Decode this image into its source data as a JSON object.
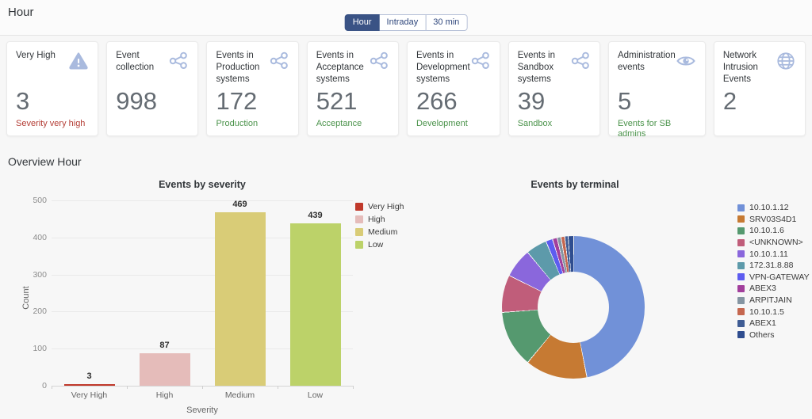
{
  "header": {
    "title": "Hour",
    "timeframe_buttons": [
      {
        "label": "Hour",
        "selected": true
      },
      {
        "label": "Intraday",
        "selected": false
      },
      {
        "label": "30 min",
        "selected": false
      }
    ]
  },
  "tiles": [
    {
      "title": "Very High",
      "icon": "warning-icon",
      "value": "3",
      "subtitle": "Severity very high",
      "subtitle_type": "negative"
    },
    {
      "title": "Event collection",
      "icon": "share-icon",
      "value": "998",
      "subtitle": "",
      "subtitle_type": "none"
    },
    {
      "title": "Events in Production systems",
      "icon": "share-icon",
      "value": "172",
      "subtitle": "Production",
      "subtitle_type": "positive"
    },
    {
      "title": "Events in Acceptance systems",
      "icon": "share-icon",
      "value": "521",
      "subtitle": "Acceptance",
      "subtitle_type": "positive"
    },
    {
      "title": "Events in Development systems",
      "icon": "share-icon",
      "value": "266",
      "subtitle": "Development",
      "subtitle_type": "positive"
    },
    {
      "title": "Events in Sandbox systems",
      "icon": "share-icon",
      "value": "39",
      "subtitle": "Sandbox",
      "subtitle_type": "positive"
    },
    {
      "title": "Administration events",
      "icon": "eye-icon",
      "value": "5",
      "subtitle": "Events for SB admins",
      "subtitle_type": "positive"
    },
    {
      "title": "Network Intrusion Events",
      "icon": "globe-icon",
      "value": "2",
      "subtitle": "",
      "subtitle_type": "none"
    }
  ],
  "overview": {
    "title": "Overview Hour"
  },
  "colors": {
    "icon_blue": "#a9bade",
    "positive_green": "#4b934b",
    "negative_red": "#b43e36",
    "selected_segment": "#3a5385",
    "background": "#f7f7f7"
  },
  "chart_data": [
    {
      "type": "bar",
      "title": "Events by severity",
      "xlabel": "Severity",
      "ylabel": "Count",
      "categories": [
        "Very High",
        "High",
        "Medium",
        "Low"
      ],
      "values": [
        3,
        87,
        469,
        439
      ],
      "colors": [
        "#c0392b",
        "#e5bcba",
        "#d9cc77",
        "#bcd269"
      ],
      "ylim": [
        0,
        500
      ],
      "yticks": [
        0,
        100,
        200,
        300,
        400,
        500
      ],
      "grid": true,
      "legend_position": "top-right",
      "legend": [
        {
          "label": "Very High",
          "color": "#c0392b"
        },
        {
          "label": "High",
          "color": "#e5bcba"
        },
        {
          "label": "Medium",
          "color": "#d9cc77"
        },
        {
          "label": "Low",
          "color": "#bcd269"
        }
      ]
    },
    {
      "type": "pie",
      "title": "Events by terminal",
      "donut": true,
      "legend_position": "right",
      "slices": [
        {
          "label": "10.10.1.12",
          "percent": 47.8,
          "color": "#7191d8"
        },
        {
          "label": "SRV03S4D1",
          "percent": 14.2,
          "color": "#c67a33"
        },
        {
          "label": "10.10.1.6",
          "percent": 13.0,
          "color": "#55996f"
        },
        {
          "label": "<UNKNOWN>",
          "percent": 8.5,
          "color": "#c05d7a"
        },
        {
          "label": "10.10.1.11",
          "percent": 6.6,
          "color": "#8a67dc"
        },
        {
          "label": "172.31.8.88",
          "percent": 4.7,
          "color": "#5d9aaa"
        },
        {
          "label": "VPN-GATEWAY",
          "percent": 1.4,
          "color": "#5d5cf0"
        },
        {
          "label": "ABEX3",
          "percent": 0.9,
          "color": "#a23f9c"
        },
        {
          "label": "ARPITJAIN",
          "percent": 0.7,
          "color": "#8595a2"
        },
        {
          "label": "10.10.1.5",
          "percent": 0.7,
          "color": "#c5674f"
        },
        {
          "label": "ABEX1",
          "percent": 0.6,
          "color": "#3f5c94"
        },
        {
          "label": "Others",
          "percent": 1.1,
          "color": "#2f4d8f"
        }
      ]
    }
  ]
}
